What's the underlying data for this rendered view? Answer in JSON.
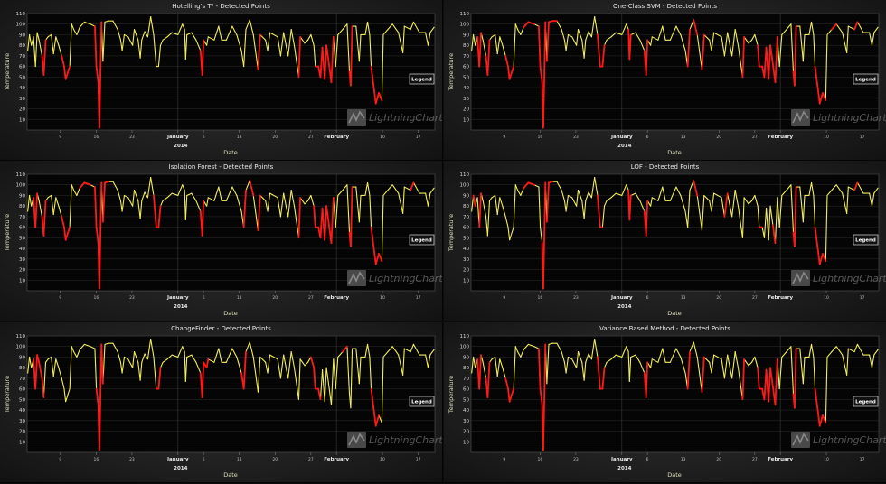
{
  "chart_data": {
    "type": "line",
    "xlabel": "Date",
    "ylabel": "Temperature",
    "year_label": "2014",
    "legend_label": "Legend",
    "watermark": "LightningChart®",
    "ylim": [
      0,
      110
    ],
    "xlim": [
      "2013-12-02T12:00",
      "2014-02-20T06:00"
    ],
    "grid": true,
    "legend_placement": "right",
    "colors": {
      "series": "#f2ee5a",
      "detected": "#ff1a1a",
      "plot_bg": "#050505"
    },
    "y_ticks": [
      10,
      20,
      30,
      40,
      50,
      60,
      70,
      80,
      90,
      100,
      110
    ],
    "x_ticks": [
      {
        "date": "2013-12-09T00:00",
        "label": "9",
        "major": false
      },
      {
        "date": "2013-12-16T00:00",
        "label": "16",
        "major": false
      },
      {
        "date": "2013-12-23T00:00",
        "label": "23",
        "major": false
      },
      {
        "date": "2014-01-01T00:00",
        "label": "January",
        "major": true
      },
      {
        "date": "2014-01-06T00:00",
        "label": "6",
        "major": false
      },
      {
        "date": "2014-01-13T00:00",
        "label": "13",
        "major": false
      },
      {
        "date": "2014-01-20T00:00",
        "label": "20",
        "major": false
      },
      {
        "date": "2014-01-27T00:00",
        "label": "27",
        "major": false
      },
      {
        "date": "2014-02-01T00:00",
        "label": "February",
        "major": true
      },
      {
        "date": "2014-02-10T00:00",
        "label": "10",
        "major": false
      },
      {
        "date": "2014-02-17T00:00",
        "label": "17",
        "major": false
      }
    ],
    "series": {
      "x": [
        "2013-12-02T15:00",
        "2013-12-02T23:00",
        "2013-12-03T08:00",
        "2013-12-03T18:00",
        "2013-12-04T03:00",
        "2013-12-04T11:00",
        "2013-12-04T20:00",
        "2013-12-05T10:00",
        "2013-12-05T18:00",
        "2013-12-06T03:00",
        "2013-12-06T14:00",
        "2013-12-07T05:00",
        "2013-12-07T16:00",
        "2013-12-08T03:00",
        "2013-12-08T16:00",
        "2013-12-09T06:00",
        "2013-12-09T18:00",
        "2013-12-10T01:00",
        "2013-12-10T12:00",
        "2013-12-10T20:00",
        "2013-12-11T05:00",
        "2013-12-11T15:00",
        "2013-12-12T05:00",
        "2013-12-12T19:00",
        "2013-12-13T17:00",
        "2013-12-14T21:00",
        "2013-12-15T18:00",
        "2013-12-16T01:00",
        "2013-12-16T10:00",
        "2013-12-16T15:00",
        "2013-12-16T20:00",
        "2013-12-17T01:00",
        "2013-12-17T08:00",
        "2013-12-17T17:00",
        "2013-12-18T10:00",
        "2013-12-19T07:00",
        "2013-12-20T05:00",
        "2013-12-20T19:00",
        "2013-12-21T02:00",
        "2013-12-21T12:00",
        "2013-12-22T06:00",
        "2013-12-23T03:00",
        "2013-12-23T11:00",
        "2013-12-24T05:00",
        "2013-12-24T15:00",
        "2013-12-24T22:00",
        "2013-12-25T12:00",
        "2013-12-26T02:00",
        "2013-12-26T16:00",
        "2013-12-27T06:00",
        "2013-12-27T18:00",
        "2013-12-28T05:00",
        "2013-12-28T14:00",
        "2013-12-29T01:00",
        "2013-12-29T22:00",
        "2013-12-30T20:00",
        "2014-01-01T00:00",
        "2014-01-01T21:00",
        "2014-01-02T07:00",
        "2014-01-02T12:00",
        "2014-01-02T18:00",
        "2014-01-03T16:00",
        "2014-01-04T13:00",
        "2014-01-05T10:00",
        "2014-01-05T18:00",
        "2014-01-06T00:00",
        "2014-01-06T15:00",
        "2014-01-06T22:00",
        "2014-01-08T02:00",
        "2014-01-08T23:00",
        "2014-01-09T13:00",
        "2014-01-10T11:00",
        "2014-01-11T15:00",
        "2014-01-12T12:00",
        "2014-01-13T10:00",
        "2014-01-13T21:00",
        "2014-01-14T07:00",
        "2014-01-15T01:00",
        "2014-01-15T18:00",
        "2014-01-16T16:00",
        "2014-01-17T02:00",
        "2014-01-18T03:00",
        "2014-01-18T13:00",
        "2014-01-19T00:00",
        "2014-01-20T12:00",
        "2014-01-21T02:00",
        "2014-01-21T16:00",
        "2014-01-22T13:00",
        "2014-01-23T04:00",
        "2014-01-23T18:00",
        "2014-01-24T15:00",
        "2014-01-24T22:00",
        "2014-01-25T19:00",
        "2014-01-26T10:00",
        "2014-01-27T00:00",
        "2014-01-27T14:00",
        "2014-01-27T21:00",
        "2014-01-28T11:00",
        "2014-01-28T21:00",
        "2014-01-29T06:00",
        "2014-01-29T17:00",
        "2014-01-30T01:00",
        "2014-01-30T13:00",
        "2014-01-31T00:00",
        "2014-01-31T10:00",
        "2014-01-31T20:00",
        "2014-02-01T07:00",
        "2014-02-02T05:00",
        "2014-02-03T02:00",
        "2014-02-03T13:00",
        "2014-02-03T19:00",
        "2014-02-04T02:00",
        "2014-02-04T20:00",
        "2014-02-05T11:00",
        "2014-02-05T18:00",
        "2014-02-06T15:00",
        "2014-02-07T02:00",
        "2014-02-07T12:00",
        "2014-02-07T19:00",
        "2014-02-08T17:00",
        "2014-02-09T07:00",
        "2014-02-09T21:00",
        "2014-02-10T04:00",
        "2014-02-11T01:00",
        "2014-02-11T23:00",
        "2014-02-13T03:00",
        "2014-02-14T00:00",
        "2014-02-14T07:00",
        "2014-02-15T12:00",
        "2014-02-16T02:00",
        "2014-02-17T06:00",
        "2014-02-18T10:00",
        "2014-02-18T22:00",
        "2014-02-19T08:00",
        "2014-02-20T02:00"
      ],
      "y": [
        75,
        90,
        80,
        88,
        60,
        92,
        85,
        70,
        52,
        85,
        88,
        90,
        72,
        88,
        80,
        70,
        60,
        48,
        55,
        60,
        100,
        95,
        90,
        97,
        102,
        100,
        98,
        60,
        45,
        2,
        50,
        102,
        65,
        102,
        103,
        103,
        95,
        85,
        75,
        90,
        88,
        80,
        95,
        85,
        68,
        85,
        93,
        88,
        107,
        90,
        60,
        60,
        80,
        85,
        88,
        92,
        90,
        100,
        95,
        67,
        90,
        92,
        85,
        75,
        52,
        85,
        80,
        88,
        85,
        98,
        85,
        85,
        98,
        90,
        75,
        60,
        95,
        104,
        90,
        57,
        90,
        85,
        75,
        92,
        88,
        70,
        92,
        70,
        95,
        80,
        50,
        88,
        82,
        85,
        90,
        80,
        60,
        60,
        50,
        78,
        48,
        80,
        62,
        45,
        88,
        60,
        90,
        95,
        100,
        55,
        42,
        98,
        98,
        65,
        90,
        90,
        102,
        90,
        60,
        25,
        35,
        28,
        90,
        95,
        100,
        92,
        73,
        98,
        95,
        102,
        92,
        92,
        80,
        92,
        97
      ]
    },
    "panels": [
      {
        "title": "Hotelling's T² - Detected Points",
        "detected_ranges": [
          [
            "2013-12-05T12:00",
            "2013-12-06T00:00"
          ],
          [
            "2013-12-09T12:00",
            "2013-12-11T00:00"
          ],
          [
            "2013-12-15T21:00",
            "2013-12-16T23:00"
          ],
          [
            "2014-01-05T14:00",
            "2014-01-05T22:00"
          ],
          [
            "2014-01-16T08:00",
            "2014-01-16T22:00"
          ],
          [
            "2014-01-24T08:00",
            "2014-01-24T20:00"
          ],
          [
            "2014-01-27T18:00",
            "2014-01-31T05:00"
          ],
          [
            "2014-02-03T08:00",
            "2014-02-03T23:00"
          ],
          [
            "2014-02-07T16:00",
            "2014-02-10T00:00"
          ]
        ]
      },
      {
        "title": "One-Class SVM - Detected Points",
        "detected_ranges": [
          [
            "2013-12-03T22:00",
            "2013-12-04T07:00"
          ],
          [
            "2013-12-05T06:00",
            "2013-12-06T00:00"
          ],
          [
            "2013-12-09T00:00",
            "2013-12-11T00:00"
          ],
          [
            "2013-12-13T06:00",
            "2013-12-14T20:00"
          ],
          [
            "2013-12-15T21:00",
            "2013-12-16T23:00"
          ],
          [
            "2013-12-17T12:00",
            "2013-12-19T00:00"
          ],
          [
            "2013-12-26T10:00",
            "2013-12-26T22:00"
          ],
          [
            "2013-12-27T12:00",
            "2013-12-28T10:00"
          ],
          [
            "2014-01-01T12:00",
            "2014-01-02T00:00"
          ],
          [
            "2014-01-02T09:00",
            "2014-01-02T15:00"
          ],
          [
            "2014-01-05T14:00",
            "2014-01-05T22:00"
          ],
          [
            "2014-01-13T16:00",
            "2014-01-14T02:00"
          ],
          [
            "2014-01-14T20:00",
            "2014-01-15T10:00"
          ],
          [
            "2014-01-16T08:00",
            "2014-01-16T22:00"
          ],
          [
            "2014-01-24T08:00",
            "2014-01-24T20:00"
          ],
          [
            "2014-01-27T10:00",
            "2014-01-31T05:00"
          ],
          [
            "2014-02-03T08:00",
            "2014-02-03T23:00"
          ],
          [
            "2014-02-06T22:00",
            "2014-02-07T06:00"
          ],
          [
            "2014-02-07T16:00",
            "2014-02-10T00:00"
          ],
          [
            "2014-02-11T12:00",
            "2014-02-12T12:00"
          ],
          [
            "2014-02-15T18:00",
            "2014-02-16T14:00"
          ]
        ]
      },
      {
        "title": "Isolation Forest - Detected Points",
        "detected_ranges": [
          [
            "2013-12-03T22:00",
            "2013-12-04T07:00"
          ],
          [
            "2013-12-05T06:00",
            "2013-12-06T00:00"
          ],
          [
            "2013-12-09T00:00",
            "2013-12-11T00:00"
          ],
          [
            "2013-12-13T06:00",
            "2013-12-14T08:00"
          ],
          [
            "2013-12-15T21:00",
            "2013-12-16T23:00"
          ],
          [
            "2013-12-17T12:00",
            "2013-12-18T20:00"
          ],
          [
            "2013-12-26T10:00",
            "2013-12-26T22:00"
          ],
          [
            "2013-12-27T12:00",
            "2013-12-28T10:00"
          ],
          [
            "2014-01-05T14:00",
            "2014-01-05T22:00"
          ],
          [
            "2014-01-13T16:00",
            "2014-01-14T02:00"
          ],
          [
            "2014-01-14T20:00",
            "2014-01-15T10:00"
          ],
          [
            "2014-01-16T08:00",
            "2014-01-16T22:00"
          ],
          [
            "2014-01-24T08:00",
            "2014-01-24T20:00"
          ],
          [
            "2014-01-27T10:00",
            "2014-01-31T05:00"
          ],
          [
            "2014-02-03T08:00",
            "2014-02-03T23:00"
          ],
          [
            "2014-02-07T16:00",
            "2014-02-10T00:00"
          ],
          [
            "2014-02-15T18:00",
            "2014-02-16T06:00"
          ]
        ]
      },
      {
        "title": "LOF - Detected Points",
        "detected_ranges": [
          [
            "2013-12-03T00:00",
            "2013-12-03T12:00"
          ],
          [
            "2013-12-04T06:00",
            "2013-12-04T14:00"
          ],
          [
            "2013-12-06T00:00",
            "2013-12-06T08:00"
          ],
          [
            "2013-12-09T22:00",
            "2013-12-10T06:00"
          ],
          [
            "2013-12-13T06:00",
            "2013-12-14T08:00"
          ],
          [
            "2013-12-16T08:00",
            "2013-12-16T23:00"
          ],
          [
            "2013-12-17T12:00",
            "2013-12-18T20:00"
          ],
          [
            "2013-12-26T10:00",
            "2013-12-26T22:00"
          ],
          [
            "2013-12-27T12:00",
            "2013-12-28T00:00"
          ],
          [
            "2014-01-02T09:00",
            "2014-01-02T15:00"
          ],
          [
            "2014-01-05T14:00",
            "2014-01-06T06:00"
          ],
          [
            "2014-01-15T00:00",
            "2014-01-15T10:00"
          ],
          [
            "2014-01-21T00:00",
            "2014-01-21T10:00"
          ],
          [
            "2014-01-27T22:00",
            "2014-01-28T04:00"
          ],
          [
            "2014-01-29T02:00",
            "2014-01-29T10:00"
          ],
          [
            "2014-01-30T08:00",
            "2014-01-30T20:00"
          ],
          [
            "2014-02-03T08:00",
            "2014-02-03T23:00"
          ],
          [
            "2014-02-07T16:00",
            "2014-02-09T20:00"
          ],
          [
            "2014-02-15T18:00",
            "2014-02-16T06:00"
          ]
        ]
      },
      {
        "title": "ChangeFinder - Detected Points",
        "detected_ranges": [
          [
            "2013-12-03T14:00",
            "2013-12-05T20:00"
          ],
          [
            "2013-12-16T00:00",
            "2013-12-17T12:00"
          ],
          [
            "2013-12-27T20:00",
            "2013-12-28T10:00"
          ],
          [
            "2014-01-05T10:00",
            "2014-01-06T20:00"
          ],
          [
            "2014-01-13T12:00",
            "2014-01-14T10:00"
          ],
          [
            "2014-01-27T06:00",
            "2014-01-29T00:00"
          ],
          [
            "2014-02-02T10:00",
            "2014-02-03T00:00"
          ],
          [
            "2014-02-07T20:00",
            "2014-02-09T10:00"
          ]
        ]
      },
      {
        "title": "Variance Based Method - Detected Points",
        "detected_ranges": [
          [
            "2013-12-03T22:00",
            "2013-12-04T07:00"
          ],
          [
            "2013-12-05T06:00",
            "2013-12-06T00:00"
          ],
          [
            "2013-12-09T00:00",
            "2013-12-11T00:00"
          ],
          [
            "2013-12-15T21:00",
            "2013-12-16T23:00"
          ],
          [
            "2013-12-26T12:00",
            "2013-12-26T20:00"
          ],
          [
            "2013-12-27T12:00",
            "2013-12-28T10:00"
          ],
          [
            "2014-01-05T14:00",
            "2014-01-05T22:00"
          ],
          [
            "2014-01-13T16:00",
            "2014-01-14T02:00"
          ],
          [
            "2014-01-16T08:00",
            "2014-01-16T22:00"
          ],
          [
            "2014-01-24T08:00",
            "2014-01-24T20:00"
          ],
          [
            "2014-01-27T10:00",
            "2014-01-31T05:00"
          ],
          [
            "2014-02-03T08:00",
            "2014-02-03T23:00"
          ],
          [
            "2014-02-07T16:00",
            "2014-02-10T00:00"
          ]
        ]
      }
    ]
  }
}
